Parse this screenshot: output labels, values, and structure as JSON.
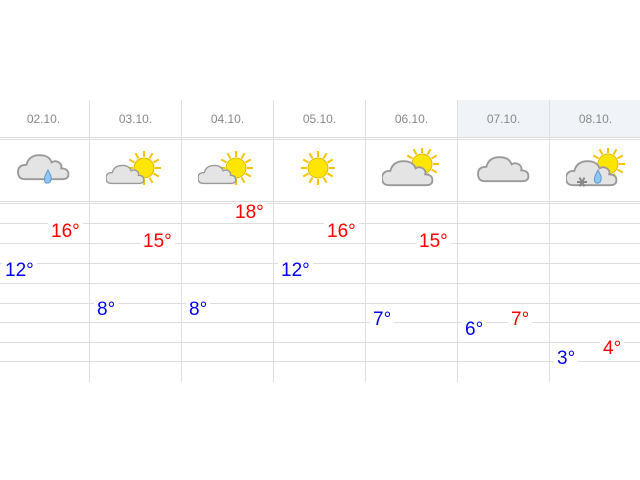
{
  "days": [
    {
      "date": "02.10.",
      "icon": "cloud-rain-icon",
      "max": "16°",
      "min": "12°",
      "max_value": 16,
      "min_value": 12,
      "highlight": false
    },
    {
      "date": "03.10.",
      "icon": "cloud-sun-icon",
      "max": "15°",
      "min": "8°",
      "max_value": 15,
      "min_value": 8,
      "highlight": false
    },
    {
      "date": "04.10.",
      "icon": "cloud-sun-icon",
      "max": "18°",
      "min": "8°",
      "max_value": 18,
      "min_value": 8,
      "highlight": false
    },
    {
      "date": "05.10.",
      "icon": "sun-icon",
      "max": "16°",
      "min": "12°",
      "max_value": 16,
      "min_value": 12,
      "highlight": false
    },
    {
      "date": "06.10.",
      "icon": "sun-behind-cloud-icon",
      "max": "15°",
      "min": "7°",
      "max_value": 15,
      "min_value": 7,
      "highlight": false
    },
    {
      "date": "07.10.",
      "icon": "cloud-icon",
      "max": "7°",
      "min": "6°",
      "max_value": 7,
      "min_value": 6,
      "highlight": true
    },
    {
      "date": "08.10.",
      "icon": "cloud-sun-sleet-icon",
      "max": "4°",
      "min": "3°",
      "max_value": 4,
      "min_value": 3,
      "highlight": true
    }
  ],
  "colors": {
    "max": "#ff0000",
    "min": "#0000ff",
    "highlight_bg": "#f0f4f8"
  }
}
